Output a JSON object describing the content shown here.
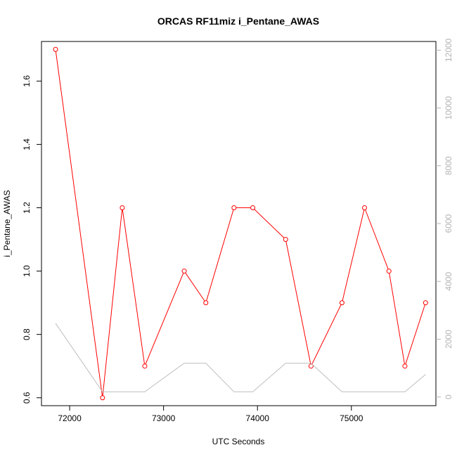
{
  "chart_data": {
    "type": "line",
    "title": "ORCAS RF11miz i_Pentane_AWAS",
    "xlabel": "UTC Seconds",
    "ylabel": "i_Pentane_AWAS",
    "xlim": [
      71700,
      75900
    ],
    "ylim": [
      0.575,
      1.725
    ],
    "y2lim": [
      -300,
      12300
    ],
    "x_ticks": [
      72000,
      73000,
      74000,
      75000
    ],
    "y_ticks": [
      0.6,
      0.8,
      1.0,
      1.2,
      1.4,
      1.6
    ],
    "y2_ticks": [
      0,
      2000,
      4000,
      6000,
      8000,
      10000,
      12000
    ],
    "series": [
      {
        "axis": "left",
        "color": "#ff0000",
        "markers": true,
        "x": [
          71850,
          72350,
          72560,
          72800,
          73220,
          73450,
          73750,
          73950,
          74300,
          74570,
          74900,
          75140,
          75400,
          75570,
          75790
        ],
        "y": [
          1.7,
          0.6,
          1.2,
          0.7,
          1.0,
          0.9,
          1.2,
          1.2,
          1.1,
          0.7,
          0.9,
          1.2,
          1.0,
          0.7,
          0.9
        ]
      },
      {
        "axis": "right",
        "color": "#bebebe",
        "markers": false,
        "x": [
          71850,
          72350,
          72560,
          72800,
          73220,
          73450,
          73750,
          73950,
          74300,
          74570,
          74900,
          75140,
          75400,
          75570,
          75790
        ],
        "y": [
          2550,
          180,
          180,
          180,
          1170,
          1170,
          180,
          180,
          1170,
          1170,
          180,
          180,
          180,
          180,
          780
        ]
      }
    ]
  }
}
